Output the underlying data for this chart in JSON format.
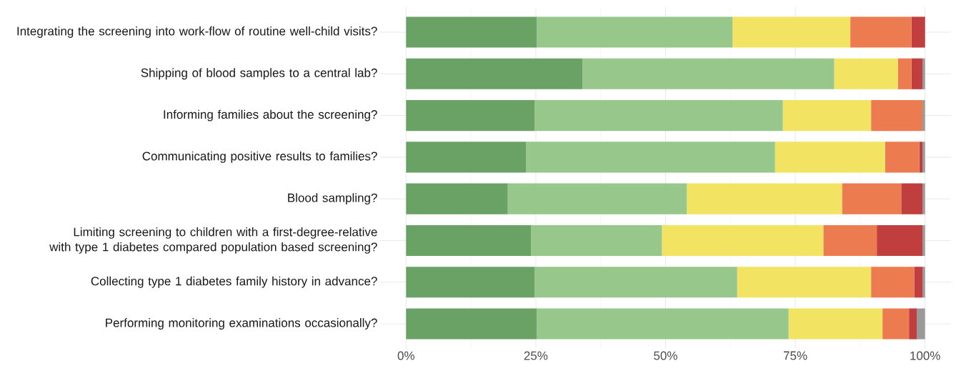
{
  "chart_data": {
    "type": "bar",
    "orientation": "horizontal",
    "stacked": true,
    "grid": true,
    "categories": [
      "Integrating the screening into work-flow of routine well-child visits?",
      "Shipping of blood samples to a central lab?",
      "Informing families about the screening?",
      "Communicating positive results to families?",
      "Blood sampling?",
      "Limiting screening to children with a first-degree-relative with type 1 diabetes compared population based screening?",
      "Collecting type 1 diabetes family history in advance?",
      "Performing monitoring examinations occasionally?"
    ],
    "series": [
      {
        "color": "#6aa266",
        "values": [
          25.2,
          34.0,
          24.8,
          23.1,
          19.6,
          24.1,
          24.8,
          25.2
        ]
      },
      {
        "color": "#97c78b",
        "values": [
          37.7,
          48.5,
          47.8,
          48.0,
          34.5,
          25.2,
          39.0,
          48.5
        ]
      },
      {
        "color": "#f2e462",
        "values": [
          22.7,
          12.3,
          17.0,
          21.2,
          29.9,
          31.1,
          25.8,
          18.1
        ]
      },
      {
        "color": "#ec7b50",
        "values": [
          11.8,
          2.6,
          9.9,
          6.6,
          11.4,
          10.3,
          8.3,
          5.1
        ]
      },
      {
        "color": "#c03e3e",
        "values": [
          2.6,
          2.1,
          0,
          0.6,
          4.1,
          8.8,
          1.6,
          1.5
        ]
      },
      {
        "color": "#9a9a9a",
        "values": [
          0,
          0.5,
          0.5,
          0.5,
          0.5,
          0.5,
          0.5,
          1.6
        ]
      }
    ],
    "xlim": [
      -5,
      105
    ],
    "xticks": [
      {
        "value": 0,
        "label": "0%"
      },
      {
        "value": 25,
        "label": "25%"
      },
      {
        "value": 50,
        "label": "50%"
      },
      {
        "value": 75,
        "label": "75%"
      },
      {
        "value": 100,
        "label": "100%"
      }
    ]
  }
}
